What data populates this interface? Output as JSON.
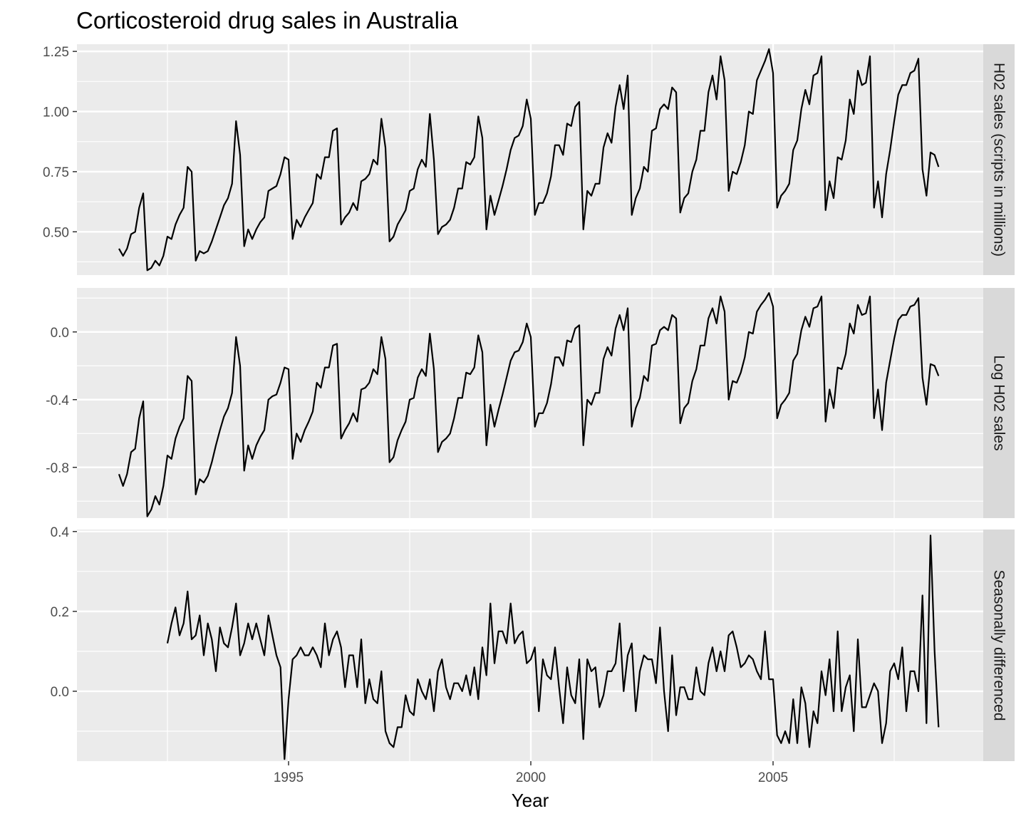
{
  "chart_data": {
    "type": "line",
    "title": "Corticosteroid drug sales in Australia",
    "xlabel": "Year",
    "xlim": [
      1991.0,
      2009.0
    ],
    "x_ticks": [
      1995,
      2000,
      2005
    ],
    "x_tick_labels": [
      "1995",
      "2000",
      "2005"
    ],
    "x_start": 1991.5,
    "x_step": 0.08333333,
    "grid": true,
    "panels": [
      {
        "strip_label": "H02 sales (scripts in millions)",
        "ylim": [
          0.32,
          1.28
        ],
        "y_ticks": [
          0.5,
          0.75,
          1.0,
          1.25
        ],
        "y_tick_labels": [
          "0.50",
          "0.75",
          "1.00",
          "1.25"
        ],
        "series": [
          {
            "x_start": 1991.5,
            "values": [
              0.43,
              0.4,
              0.43,
              0.49,
              0.5,
              0.6,
              0.66,
              0.34,
              0.35,
              0.38,
              0.36,
              0.4,
              0.48,
              0.47,
              0.53,
              0.57,
              0.6,
              0.77,
              0.75,
              0.38,
              0.42,
              0.41,
              0.42,
              0.46,
              0.51,
              0.56,
              0.61,
              0.64,
              0.7,
              0.96,
              0.82,
              0.44,
              0.51,
              0.47,
              0.51,
              0.54,
              0.56,
              0.67,
              0.68,
              0.69,
              0.74,
              0.81,
              0.8,
              0.47,
              0.55,
              0.52,
              0.56,
              0.59,
              0.62,
              0.74,
              0.72,
              0.81,
              0.81,
              0.92,
              0.93,
              0.53,
              0.56,
              0.58,
              0.62,
              0.59,
              0.71,
              0.72,
              0.74,
              0.8,
              0.78,
              0.97,
              0.85,
              0.46,
              0.48,
              0.53,
              0.56,
              0.59,
              0.67,
              0.68,
              0.76,
              0.8,
              0.77,
              0.99,
              0.8,
              0.49,
              0.52,
              0.53,
              0.55,
              0.6,
              0.68,
              0.68,
              0.79,
              0.78,
              0.81,
              0.98,
              0.89,
              0.51,
              0.65,
              0.57,
              0.63,
              0.69,
              0.76,
              0.84,
              0.89,
              0.9,
              0.94,
              1.05,
              0.97,
              0.57,
              0.62,
              0.62,
              0.66,
              0.73,
              0.86,
              0.86,
              0.82,
              0.95,
              0.94,
              1.02,
              1.04,
              0.51,
              0.67,
              0.65,
              0.7,
              0.7,
              0.85,
              0.91,
              0.87,
              1.02,
              1.11,
              1.01,
              1.15,
              0.57,
              0.64,
              0.68,
              0.77,
              0.75,
              0.92,
              0.93,
              1.01,
              1.03,
              1.01,
              1.1,
              1.08,
              0.58,
              0.64,
              0.66,
              0.75,
              0.8,
              0.92,
              0.92,
              1.08,
              1.15,
              1.05,
              1.23,
              1.13,
              0.67,
              0.75,
              0.74,
              0.79,
              0.86,
              1.0,
              0.99,
              1.13,
              1.17,
              1.21,
              1.26,
              1.16,
              0.6,
              0.65,
              0.67,
              0.7,
              0.84,
              0.88,
              1.01,
              1.09,
              1.03,
              1.15,
              1.16,
              1.23,
              0.59,
              0.71,
              0.64,
              0.81,
              0.8,
              0.88,
              1.05,
              0.99,
              1.17,
              1.11,
              1.12,
              1.23,
              0.6,
              0.71,
              0.56,
              0.74,
              0.84,
              0.96,
              1.07,
              1.11,
              1.11,
              1.16,
              1.17,
              1.22,
              0.76,
              0.65,
              0.83,
              0.82,
              0.77
            ]
          }
        ]
      },
      {
        "strip_label": "Log H02 sales",
        "ylim": [
          -1.1,
          0.26
        ],
        "y_ticks": [
          -0.8,
          -0.4,
          0.0
        ],
        "y_tick_labels": [
          "-0.8",
          "-0.4",
          "0.0"
        ],
        "series": [
          {
            "x_start": 1991.5,
            "values": [
              -0.84,
              -0.91,
              -0.84,
              -0.71,
              -0.69,
              -0.51,
              -0.41,
              -1.09,
              -1.05,
              -0.97,
              -1.02,
              -0.91,
              -0.73,
              -0.75,
              -0.63,
              -0.56,
              -0.51,
              -0.26,
              -0.29,
              -0.96,
              -0.87,
              -0.89,
              -0.85,
              -0.77,
              -0.67,
              -0.58,
              -0.5,
              -0.45,
              -0.36,
              -0.03,
              -0.2,
              -0.82,
              -0.67,
              -0.75,
              -0.67,
              -0.62,
              -0.58,
              -0.4,
              -0.38,
              -0.37,
              -0.3,
              -0.21,
              -0.22,
              -0.75,
              -0.6,
              -0.65,
              -0.58,
              -0.53,
              -0.47,
              -0.3,
              -0.33,
              -0.21,
              -0.21,
              -0.08,
              -0.07,
              -0.63,
              -0.58,
              -0.54,
              -0.48,
              -0.53,
              -0.34,
              -0.33,
              -0.3,
              -0.22,
              -0.25,
              -0.03,
              -0.16,
              -0.77,
              -0.74,
              -0.64,
              -0.58,
              -0.53,
              -0.4,
              -0.39,
              -0.27,
              -0.22,
              -0.26,
              -0.01,
              -0.22,
              -0.71,
              -0.65,
              -0.63,
              -0.6,
              -0.51,
              -0.39,
              -0.39,
              -0.24,
              -0.25,
              -0.21,
              -0.02,
              -0.12,
              -0.67,
              -0.43,
              -0.56,
              -0.46,
              -0.37,
              -0.27,
              -0.17,
              -0.12,
              -0.11,
              -0.06,
              0.05,
              -0.03,
              -0.56,
              -0.48,
              -0.48,
              -0.42,
              -0.31,
              -0.15,
              -0.15,
              -0.2,
              -0.05,
              -0.06,
              0.02,
              0.04,
              -0.67,
              -0.4,
              -0.43,
              -0.36,
              -0.36,
              -0.16,
              -0.09,
              -0.14,
              0.02,
              0.1,
              0.01,
              0.14,
              -0.56,
              -0.45,
              -0.39,
              -0.26,
              -0.29,
              -0.08,
              -0.07,
              0.01,
              0.03,
              0.01,
              0.1,
              0.08,
              -0.54,
              -0.45,
              -0.42,
              -0.29,
              -0.22,
              -0.08,
              -0.08,
              0.08,
              0.14,
              0.05,
              0.21,
              0.12,
              -0.4,
              -0.29,
              -0.3,
              -0.24,
              -0.15,
              0.0,
              -0.01,
              0.12,
              0.16,
              0.19,
              0.23,
              0.15,
              -0.51,
              -0.43,
              -0.4,
              -0.36,
              -0.17,
              -0.13,
              0.01,
              0.09,
              0.03,
              0.14,
              0.15,
              0.21,
              -0.53,
              -0.34,
              -0.45,
              -0.21,
              -0.22,
              -0.13,
              0.05,
              -0.01,
              0.16,
              0.1,
              0.11,
              0.21,
              -0.51,
              -0.34,
              -0.58,
              -0.3,
              -0.17,
              -0.04,
              0.07,
              0.1,
              0.1,
              0.15,
              0.16,
              0.2,
              -0.27,
              -0.43,
              -0.19,
              -0.2,
              -0.26
            ]
          }
        ]
      },
      {
        "strip_label": "Seasonally differenced",
        "ylim": [
          -0.175,
          0.405
        ],
        "y_ticks": [
          0.0,
          0.2,
          0.4
        ],
        "y_tick_labels": [
          "0.0",
          "0.2",
          "0.4"
        ],
        "series": [
          {
            "x_start": 1992.5,
            "values": [
              0.12,
              0.17,
              0.21,
              0.14,
              0.17,
              0.25,
              0.13,
              0.14,
              0.19,
              0.09,
              0.17,
              0.13,
              0.05,
              0.16,
              0.12,
              0.11,
              0.16,
              0.22,
              0.09,
              0.12,
              0.17,
              0.13,
              0.17,
              0.13,
              0.09,
              0.19,
              0.14,
              0.09,
              0.06,
              -0.17,
              -0.02,
              0.08,
              0.09,
              0.11,
              0.09,
              0.09,
              0.11,
              0.09,
              0.06,
              0.17,
              0.09,
              0.13,
              0.15,
              0.11,
              0.01,
              0.09,
              0.09,
              0.01,
              0.13,
              -0.03,
              0.03,
              -0.02,
              -0.03,
              0.05,
              -0.1,
              -0.13,
              -0.14,
              -0.09,
              -0.09,
              -0.01,
              -0.05,
              -0.06,
              0.03,
              0.0,
              -0.02,
              0.03,
              -0.05,
              0.05,
              0.08,
              0.01,
              -0.02,
              0.02,
              0.02,
              0.0,
              0.04,
              -0.01,
              0.06,
              -0.02,
              0.11,
              0.04,
              0.22,
              0.07,
              0.15,
              0.15,
              0.12,
              0.22,
              0.12,
              0.14,
              0.15,
              0.07,
              0.08,
              0.11,
              -0.05,
              0.08,
              0.04,
              0.03,
              0.11,
              0.01,
              -0.08,
              0.06,
              -0.01,
              -0.03,
              0.08,
              -0.12,
              0.08,
              0.05,
              0.06,
              -0.04,
              -0.01,
              0.05,
              0.05,
              0.07,
              0.17,
              0.0,
              0.09,
              0.12,
              -0.05,
              0.05,
              0.09,
              0.08,
              0.08,
              0.02,
              0.16,
              0.0,
              -0.1,
              0.09,
              -0.06,
              0.01,
              0.01,
              -0.02,
              -0.02,
              0.06,
              0.0,
              -0.01,
              0.07,
              0.11,
              0.05,
              0.1,
              0.05,
              0.14,
              0.15,
              0.11,
              0.06,
              0.07,
              0.09,
              0.08,
              0.05,
              0.03,
              0.15,
              0.03,
              0.03,
              -0.11,
              -0.13,
              -0.1,
              -0.13,
              -0.02,
              -0.13,
              0.01,
              -0.03,
              -0.14,
              -0.05,
              -0.08,
              0.05,
              -0.01,
              0.08,
              -0.05,
              0.15,
              -0.05,
              0.01,
              0.04,
              -0.1,
              0.13,
              -0.04,
              -0.04,
              -0.01,
              0.02,
              0.0,
              -0.13,
              -0.08,
              0.05,
              0.07,
              0.03,
              0.11,
              -0.05,
              0.05,
              0.05,
              0.0,
              0.24,
              -0.08,
              0.39,
              0.1,
              -0.09
            ]
          }
        ]
      }
    ]
  }
}
